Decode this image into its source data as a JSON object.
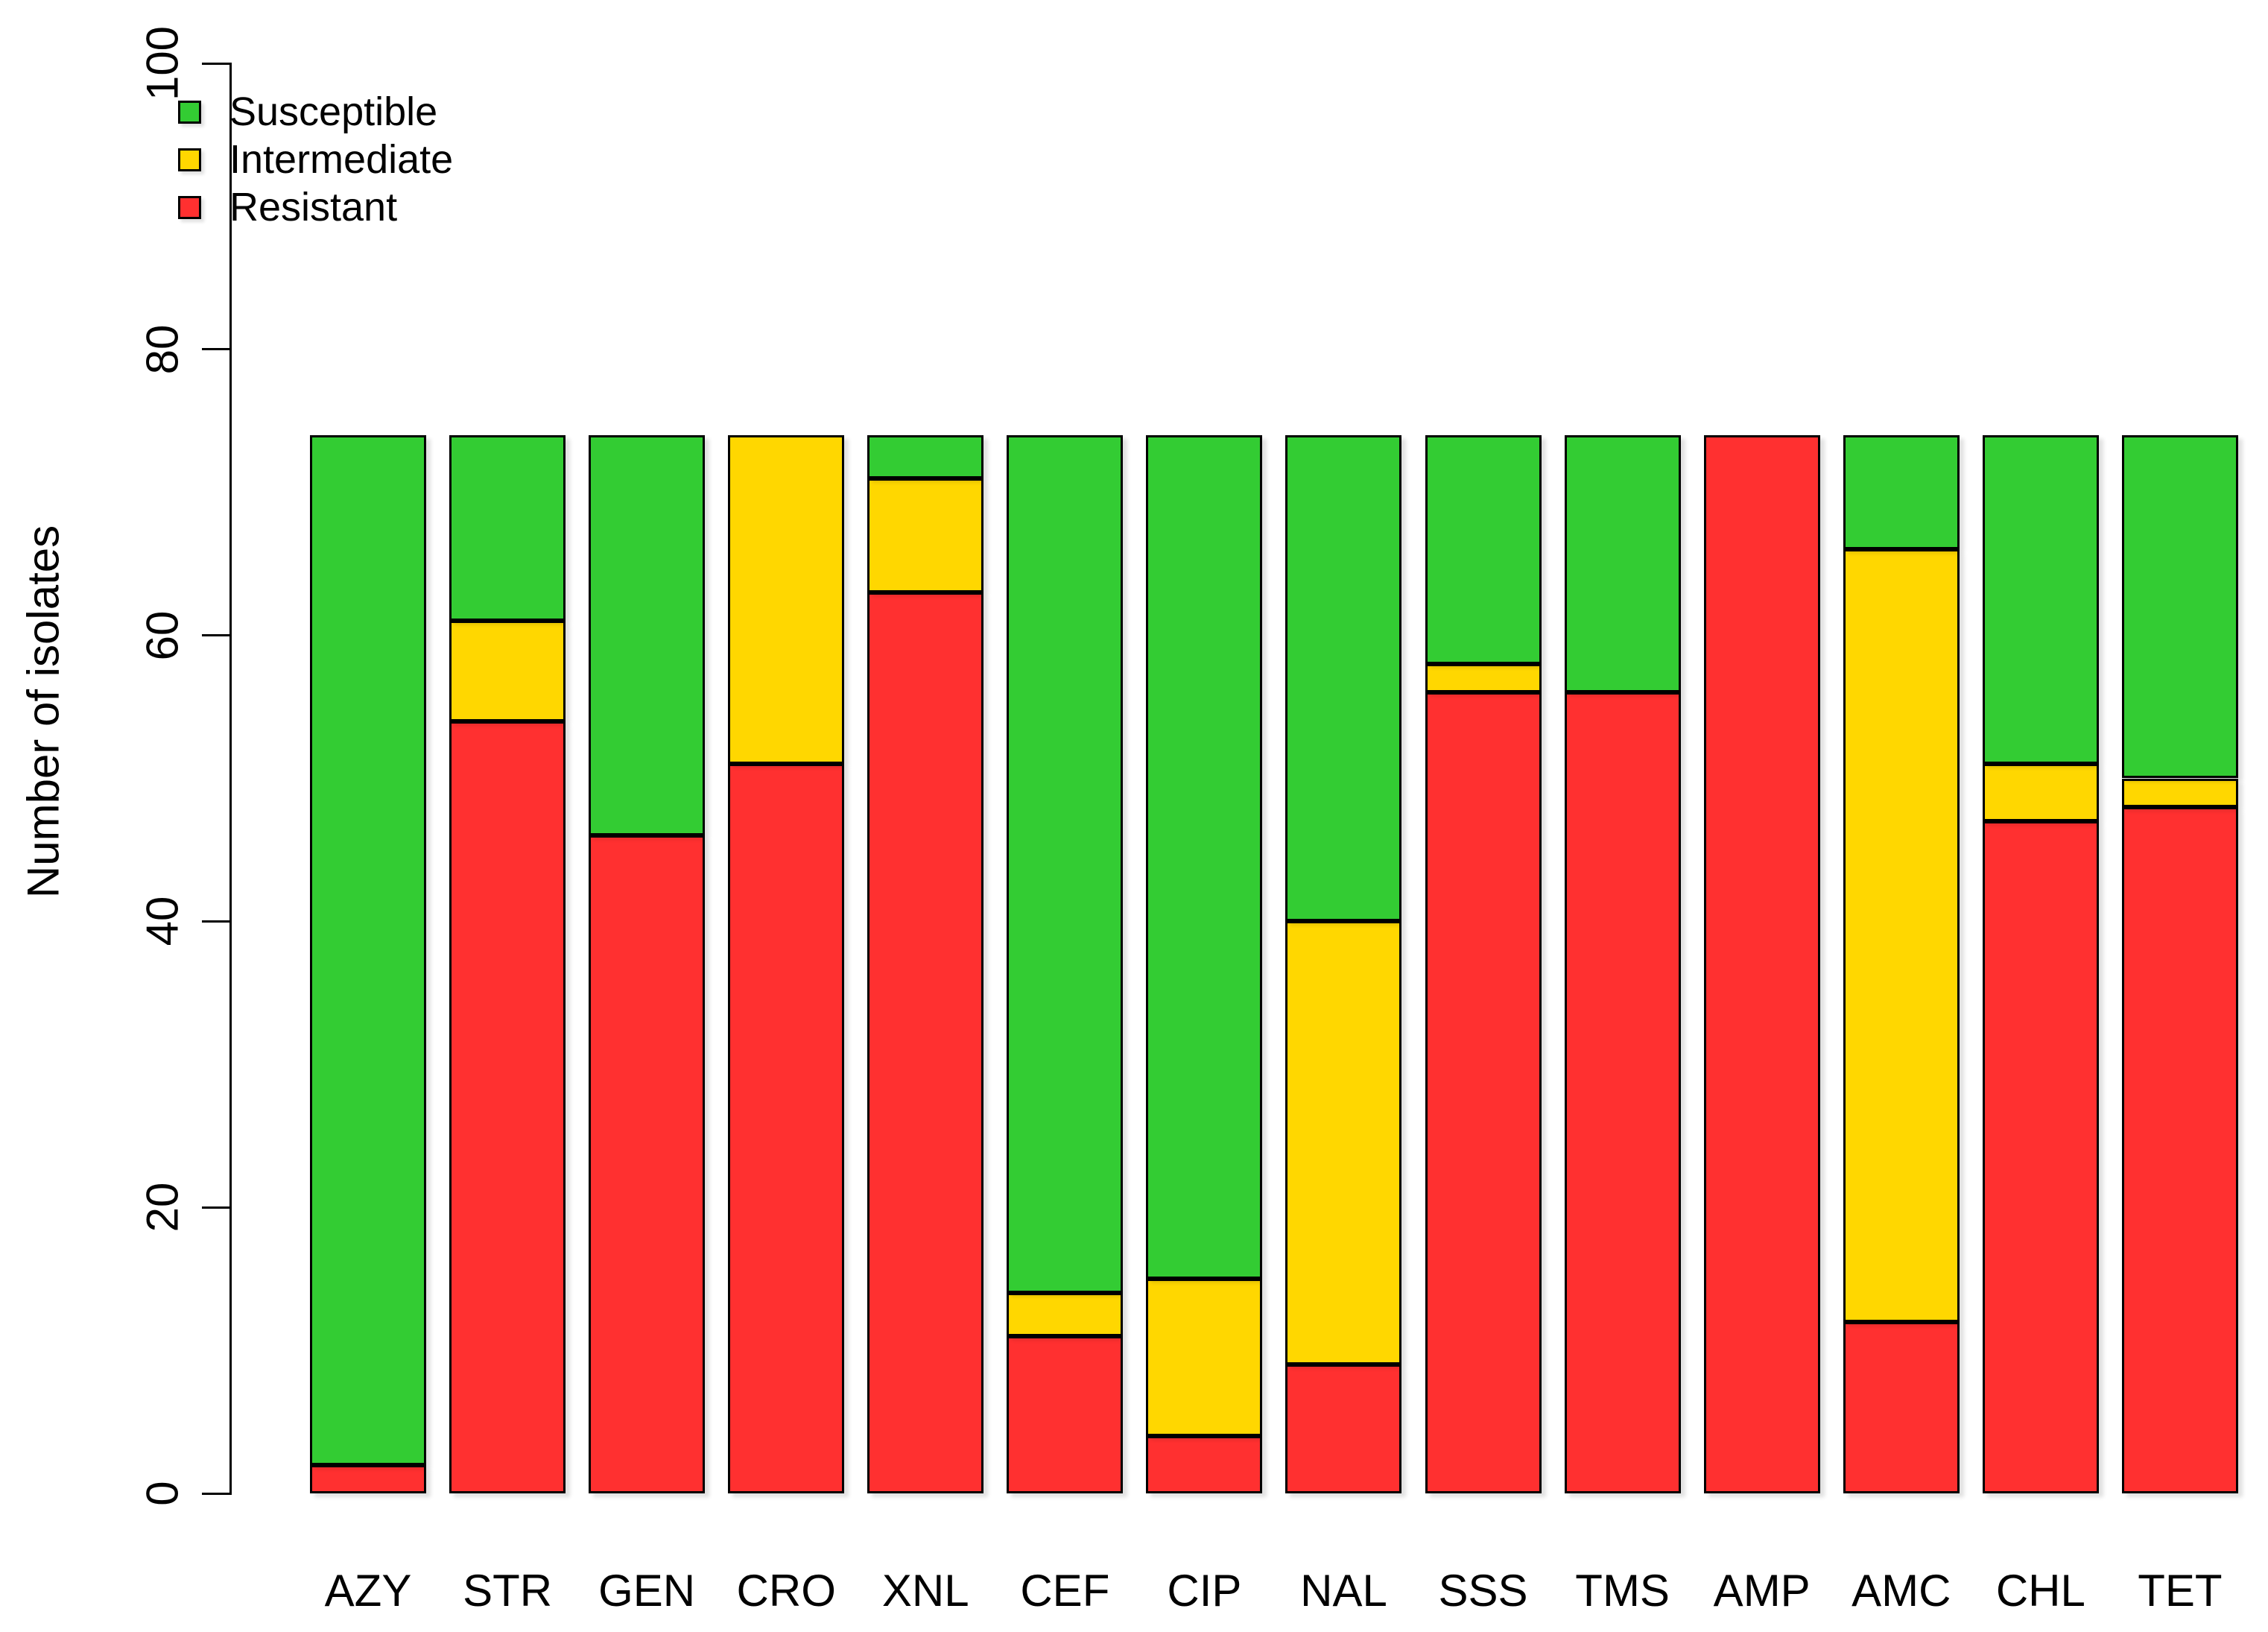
{
  "legend": {
    "items": [
      {
        "label": "Susceptible",
        "color": "#33CC33"
      },
      {
        "label": "Intermediate",
        "color": "#FFD700"
      },
      {
        "label": "Resistant",
        "color": "#FF3030"
      }
    ]
  },
  "chart_data": {
    "type": "bar",
    "stacked": true,
    "title": "",
    "xlabel": "",
    "ylabel": "Number of isolates",
    "ylim": [
      0,
      100
    ],
    "yticks": [
      0,
      20,
      40,
      60,
      80,
      100
    ],
    "grid": false,
    "legend_position": "top-left",
    "bar_total": 74,
    "categories": [
      "AZY",
      "STR",
      "GEN",
      "CRO",
      "XNL",
      "CEF",
      "CIP",
      "NAL",
      "SSS",
      "TMS",
      "AMP",
      "AMC",
      "CHL",
      "TET"
    ],
    "series": [
      {
        "name": "Resistant",
        "color": "#FF3030",
        "values": [
          2,
          54,
          46,
          51,
          63,
          11,
          4,
          9,
          56,
          56,
          74,
          12,
          47,
          48
        ]
      },
      {
        "name": "Intermediate",
        "color": "#FFD700",
        "values": [
          0,
          7,
          0,
          23,
          8,
          3,
          11,
          31,
          2,
          0,
          0,
          54,
          4,
          2
        ]
      },
      {
        "name": "Susceptible",
        "color": "#33CC33",
        "values": [
          72,
          13,
          28,
          0,
          3,
          60,
          59,
          34,
          16,
          18,
          0,
          8,
          23,
          24
        ]
      }
    ]
  }
}
